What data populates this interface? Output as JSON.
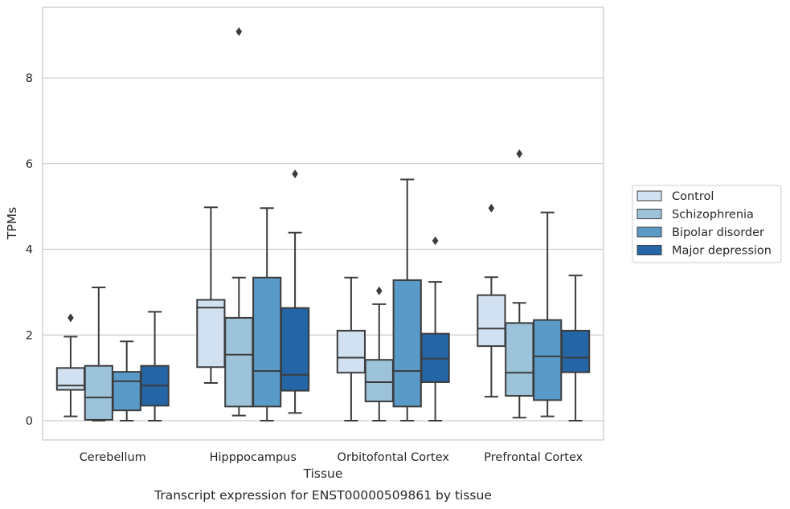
{
  "chart_data": {
    "type": "boxplot",
    "xlabel": "Tissue",
    "ylabel": "TPMs",
    "caption": "Transcript expression for ENST00000509861 by tissue",
    "ylim": [
      -0.45,
      9.65
    ],
    "yticks": [
      0,
      2,
      4,
      6,
      8
    ],
    "grid": "horizontal",
    "legend_position": "right",
    "categories": [
      "Cerebellum",
      "Hipppocampus",
      "Orbitofontal Cortex",
      "Prefrontal Cortex"
    ],
    "series": [
      {
        "name": "Control",
        "color": "#d1e1f1",
        "boxes": [
          {
            "whislo": 0.1,
            "q1": 0.72,
            "med": 0.82,
            "q3": 1.23,
            "whishi": 1.96,
            "fliers": [
              2.4
            ]
          },
          {
            "whislo": 0.88,
            "q1": 1.25,
            "med": 2.64,
            "q3": 2.82,
            "whishi": 4.98,
            "fliers": []
          },
          {
            "whislo": 0.0,
            "q1": 1.12,
            "med": 1.47,
            "q3": 2.1,
            "whishi": 3.34,
            "fliers": []
          },
          {
            "whislo": 0.56,
            "q1": 1.74,
            "med": 2.15,
            "q3": 2.93,
            "whishi": 3.35,
            "fliers": [
              4.96
            ]
          }
        ]
      },
      {
        "name": "Schizophrenia",
        "color": "#9cc3da",
        "boxes": [
          {
            "whislo": 0.0,
            "q1": 0.02,
            "med": 0.54,
            "q3": 1.28,
            "whishi": 3.11,
            "fliers": []
          },
          {
            "whislo": 0.12,
            "q1": 0.33,
            "med": 1.54,
            "q3": 2.4,
            "whishi": 3.34,
            "fliers": [
              9.08
            ]
          },
          {
            "whislo": 0.0,
            "q1": 0.45,
            "med": 0.9,
            "q3": 1.42,
            "whishi": 2.72,
            "fliers": [
              3.03
            ]
          },
          {
            "whislo": 0.07,
            "q1": 0.58,
            "med": 1.12,
            "q3": 2.28,
            "whishi": 2.75,
            "fliers": [
              6.23
            ]
          }
        ]
      },
      {
        "name": "Bipolar disorder",
        "color": "#5a9ac9",
        "boxes": [
          {
            "whislo": 0.0,
            "q1": 0.24,
            "med": 0.92,
            "q3": 1.14,
            "whishi": 1.85,
            "fliers": []
          },
          {
            "whislo": 0.0,
            "q1": 0.33,
            "med": 1.16,
            "q3": 3.34,
            "whishi": 4.96,
            "fliers": []
          },
          {
            "whislo": 0.0,
            "q1": 0.33,
            "med": 1.16,
            "q3": 3.28,
            "whishi": 5.63,
            "fliers": []
          },
          {
            "whislo": 0.1,
            "q1": 0.48,
            "med": 1.5,
            "q3": 2.35,
            "whishi": 4.86,
            "fliers": []
          }
        ]
      },
      {
        "name": "Major depression",
        "color": "#2465a6",
        "boxes": [
          {
            "whislo": 0.0,
            "q1": 0.35,
            "med": 0.82,
            "q3": 1.28,
            "whishi": 2.54,
            "fliers": []
          },
          {
            "whislo": 0.18,
            "q1": 0.7,
            "med": 1.07,
            "q3": 2.63,
            "whishi": 4.39,
            "fliers": [
              5.76
            ]
          },
          {
            "whislo": 0.0,
            "q1": 0.9,
            "med": 1.45,
            "q3": 2.03,
            "whishi": 3.24,
            "fliers": [
              4.2
            ]
          },
          {
            "whislo": 0.0,
            "q1": 1.13,
            "med": 1.47,
            "q3": 2.1,
            "whishi": 3.39,
            "fliers": []
          }
        ]
      }
    ]
  }
}
